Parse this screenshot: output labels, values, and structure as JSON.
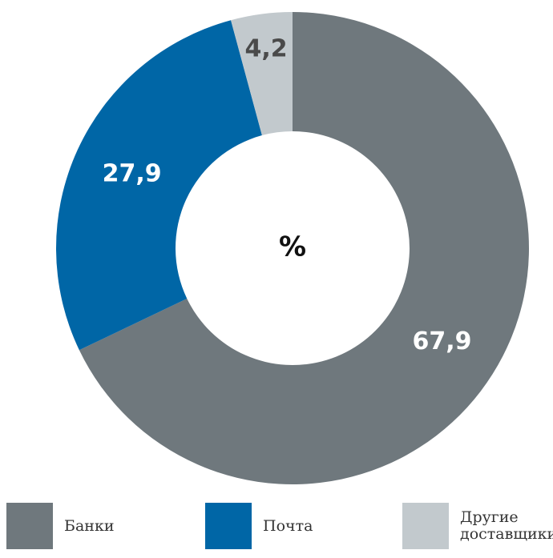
{
  "chart_data": {
    "type": "donut",
    "center_label": "%",
    "slices": [
      {
        "label": "Банки",
        "value": 67.9,
        "value_label": "67,9",
        "color": "#6f787d",
        "label_color": "#ffffff"
      },
      {
        "label": "Почта",
        "value": 27.9,
        "value_label": "27,9",
        "color": "#0066a6",
        "label_color": "#ffffff"
      },
      {
        "label": "Другие\nдоставщики",
        "value": 4.2,
        "value_label": "4,2",
        "color": "#c2c9cd",
        "label_color": "#4a4a4a"
      }
    ],
    "legend_position": "bottom"
  }
}
